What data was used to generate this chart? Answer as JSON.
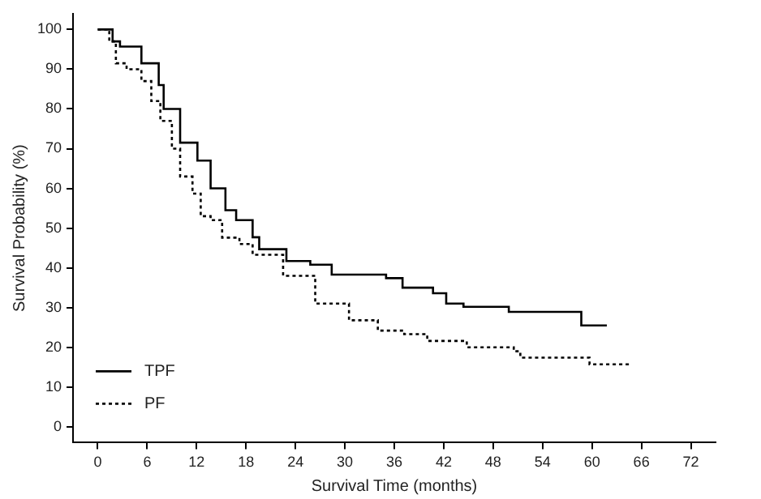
{
  "chart_data": {
    "type": "step",
    "xlabel": "Survival Time (months)",
    "ylabel": "Survival Probability (%)",
    "xlim": [
      -3,
      75
    ],
    "ylim": [
      -4,
      104
    ],
    "xticks": [
      0,
      6,
      12,
      18,
      24,
      30,
      36,
      42,
      48,
      54,
      60,
      66,
      72
    ],
    "yticks": [
      0,
      10,
      20,
      30,
      40,
      50,
      60,
      70,
      80,
      90,
      100
    ],
    "grid": false,
    "legend": "bottom left",
    "marker": "none",
    "series": [
      {
        "name": "TPF",
        "color": "#000000",
        "line_style": "solid",
        "x": [
          0,
          1.8,
          2.7,
          5.3,
          7.4,
          8,
          10,
          12.1,
          13.7,
          15.5,
          16.8,
          18.8,
          19.6,
          22.9,
          25.8,
          28.4,
          35,
          37,
          40.7,
          42.3,
          44.4,
          49.9,
          58.7,
          61.8
        ],
        "values": [
          100,
          97,
          95.7,
          91.5,
          86,
          80,
          71.5,
          67,
          60,
          54.5,
          52,
          47.7,
          44.7,
          41.7,
          40.8,
          38.3,
          37.4,
          35,
          33.6,
          31,
          30.2,
          28.9,
          25.5,
          25.5
        ]
      },
      {
        "name": "PF",
        "color": "#000000",
        "line_style": "dotted",
        "x": [
          0,
          1.4,
          2.2,
          3.5,
          5.3,
          6.5,
          7.6,
          9,
          10,
          11.5,
          12.5,
          13.7,
          15.1,
          17.2,
          18.8,
          22.5,
          26.4,
          30.5,
          34,
          37.2,
          40,
          44.8,
          50.5,
          51.3,
          59.7,
          64.6
        ],
        "values": [
          100,
          97,
          91.5,
          90,
          87,
          82,
          77,
          70,
          63,
          58.7,
          53,
          52,
          47.6,
          46,
          43.3,
          38,
          31,
          26.8,
          24.2,
          23.3,
          21.6,
          20,
          19,
          17.4,
          15.7,
          15.7
        ]
      }
    ]
  }
}
